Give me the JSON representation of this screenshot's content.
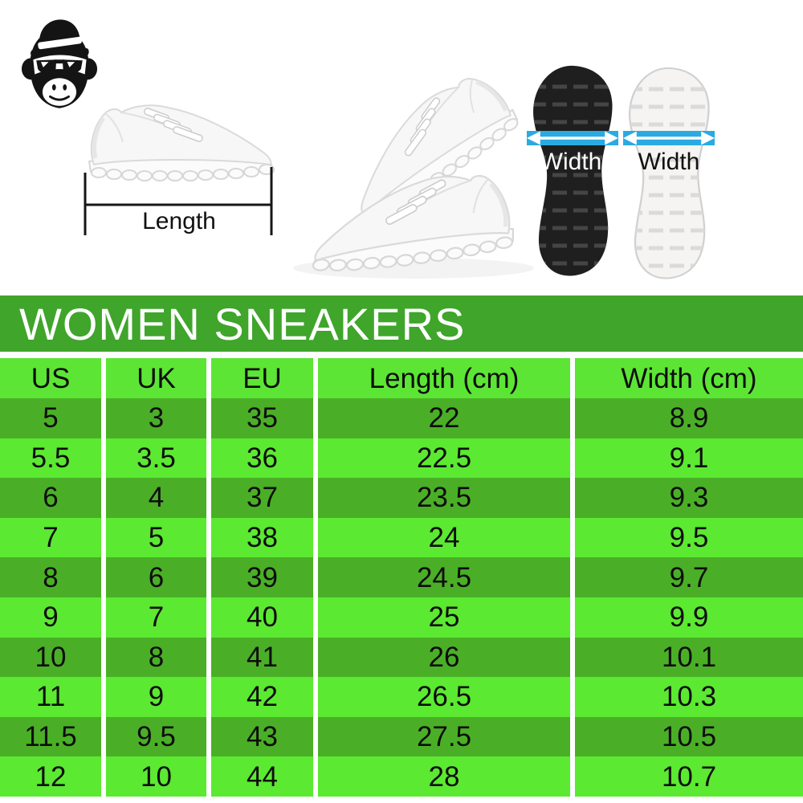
{
  "logo_icon": "monkey-logo",
  "photos": {
    "length_label": "Length",
    "width_label_left": "Width",
    "width_label_right": "Width"
  },
  "banner": {
    "title": "WOMEN SNEAKERS"
  },
  "table": {
    "headers": [
      "US",
      "UK",
      "EU",
      "Length (cm)",
      "Width (cm)"
    ],
    "rows": [
      [
        "5",
        "3",
        "35",
        "22",
        "8.9"
      ],
      [
        "5.5",
        "3.5",
        "36",
        "22.5",
        "9.1"
      ],
      [
        "6",
        "4",
        "37",
        "23.5",
        "9.3"
      ],
      [
        "7",
        "5",
        "38",
        "24",
        "9.5"
      ],
      [
        "8",
        "6",
        "39",
        "24.5",
        "9.7"
      ],
      [
        "9",
        "7",
        "40",
        "25",
        "9.9"
      ],
      [
        "10",
        "8",
        "41",
        "26",
        "10.1"
      ],
      [
        "11",
        "9",
        "42",
        "26.5",
        "10.3"
      ],
      [
        "11.5",
        "9.5",
        "43",
        "27.5",
        "10.5"
      ],
      [
        "12",
        "10",
        "44",
        "28",
        "10.7"
      ]
    ]
  },
  "colors": {
    "banner_green": "#3FA52B",
    "header_green": "#5CE535",
    "row_dark": "#4AAF27",
    "row_bright": "#5BE931",
    "measure_blue": "#29ABE2",
    "text_dark": "#0d0d0d",
    "text_light": "#ffffff"
  }
}
